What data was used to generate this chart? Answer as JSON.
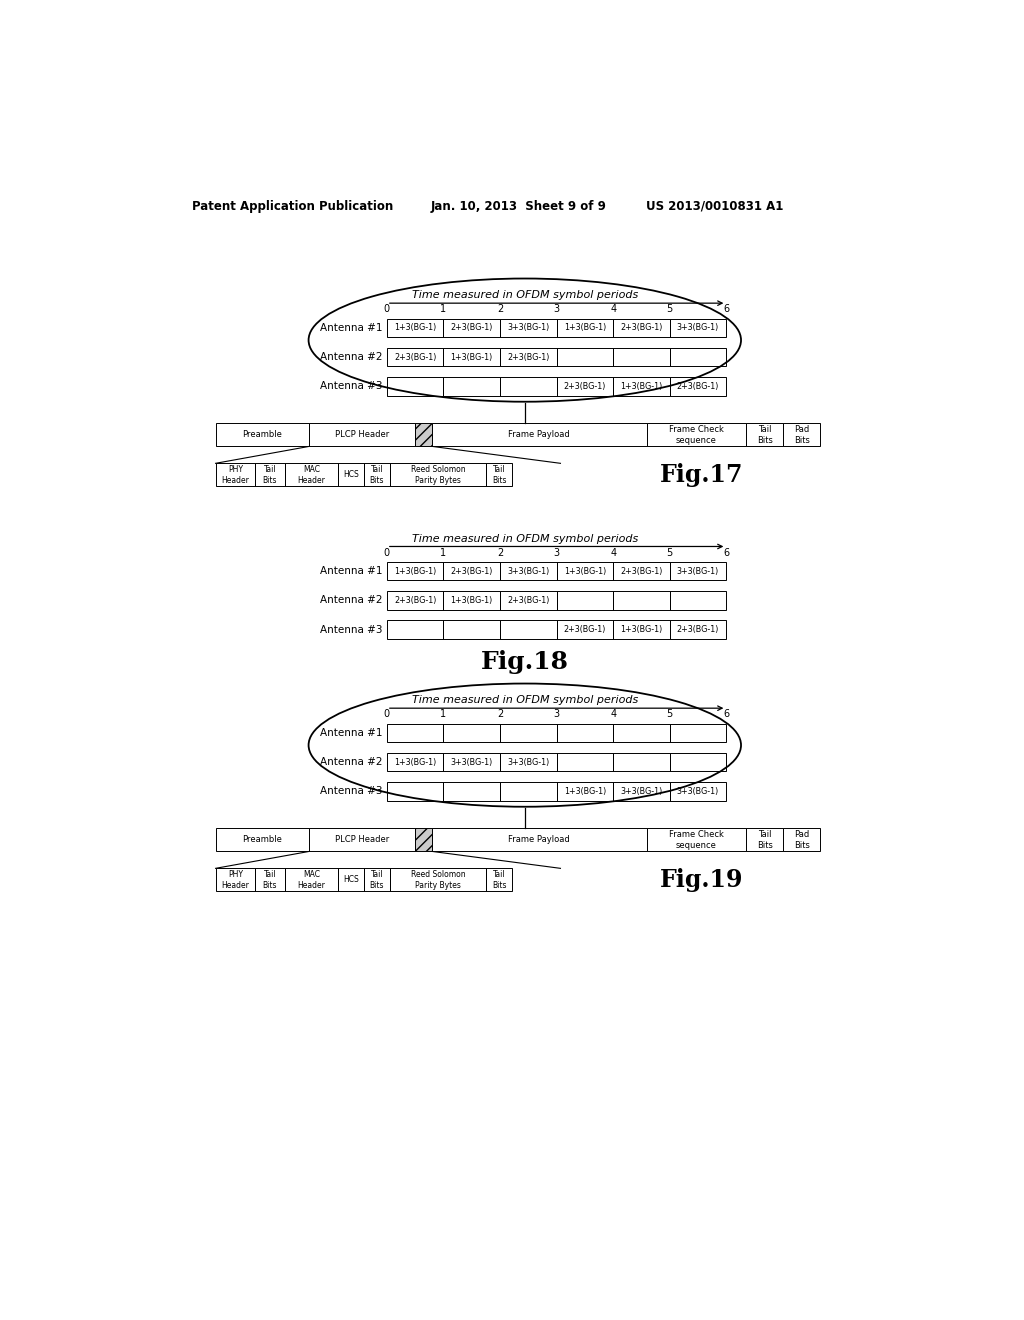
{
  "bg_color": "#ffffff",
  "header_left": "Patent Application Publication",
  "header_mid": "Jan. 10, 2013  Sheet 9 of 9",
  "header_right": "US 2013/0010831 A1",
  "tick_labels": [
    "0",
    "1",
    "2",
    "3",
    "4",
    "5",
    "6"
  ],
  "fig17": {
    "title": "Time measured in OFDM symbol periods",
    "antenna1": [
      "1+3(BG-1)",
      "2+3(BG-1)",
      "3+3(BG-1)",
      "1+3(BG-1)",
      "2+3(BG-1)",
      "3+3(BG-1)"
    ],
    "antenna2": [
      "2+3(BG-1)",
      "1+3(BG-1)",
      "2+3(BG-1)",
      "",
      "",
      ""
    ],
    "antenna3": [
      "",
      "",
      "",
      "2+3(BG-1)",
      "1+3(BG-1)",
      "2+3(BG-1)"
    ],
    "fig_label": "Fig.17"
  },
  "fig18": {
    "title": "Time measured in OFDM symbol periods",
    "antenna1": [
      "1+3(BG-1)",
      "2+3(BG-1)",
      "3+3(BG-1)",
      "1+3(BG-1)",
      "2+3(BG-1)",
      "3+3(BG-1)"
    ],
    "antenna2": [
      "2+3(BG-1)",
      "1+3(BG-1)",
      "2+3(BG-1)",
      "",
      "",
      ""
    ],
    "antenna3": [
      "",
      "",
      "",
      "2+3(BG-1)",
      "1+3(BG-1)",
      "2+3(BG-1)"
    ],
    "fig_label": "Fig.18"
  },
  "fig19": {
    "title": "Time measured in OFDM symbol periods",
    "antenna1": [
      "",
      "",
      "",
      "",
      "",
      ""
    ],
    "antenna2": [
      "1+3(BG-1)",
      "3+3(BG-1)",
      "3+3(BG-1)",
      "",
      "",
      ""
    ],
    "antenna3": [
      "",
      "",
      "",
      "1+3(BG-1)",
      "3+3(BG-1)",
      "3+3(BG-1)"
    ],
    "fig_label": "Fig.19"
  },
  "frame_segs": [
    {
      "label": "Preamble",
      "rw": 0.155,
      "hatch": false
    },
    {
      "label": "PLCP Header",
      "rw": 0.175,
      "hatch": false
    },
    {
      "label": "",
      "rw": 0.028,
      "hatch": true
    },
    {
      "label": "Frame Payload",
      "rw": 0.355,
      "hatch": false
    },
    {
      "label": "Frame Check\nsequence",
      "rw": 0.165,
      "hatch": false
    },
    {
      "label": "Tail\nBits",
      "rw": 0.061,
      "hatch": false
    },
    {
      "label": "Pad\nBits",
      "rw": 0.061,
      "hatch": false
    }
  ],
  "plcp_segs": [
    {
      "label": "PHY\nHeader",
      "rw": 0.115
    },
    {
      "label": "Tail\nBits",
      "rw": 0.085
    },
    {
      "label": "MAC\nHeader",
      "rw": 0.155
    },
    {
      "label": "HCS",
      "rw": 0.075
    },
    {
      "label": "Tail\nBits",
      "rw": 0.075
    },
    {
      "label": "Reed Solomon\nParity Bytes",
      "rw": 0.28
    },
    {
      "label": "Tail\nBits",
      "rw": 0.075
    }
  ]
}
